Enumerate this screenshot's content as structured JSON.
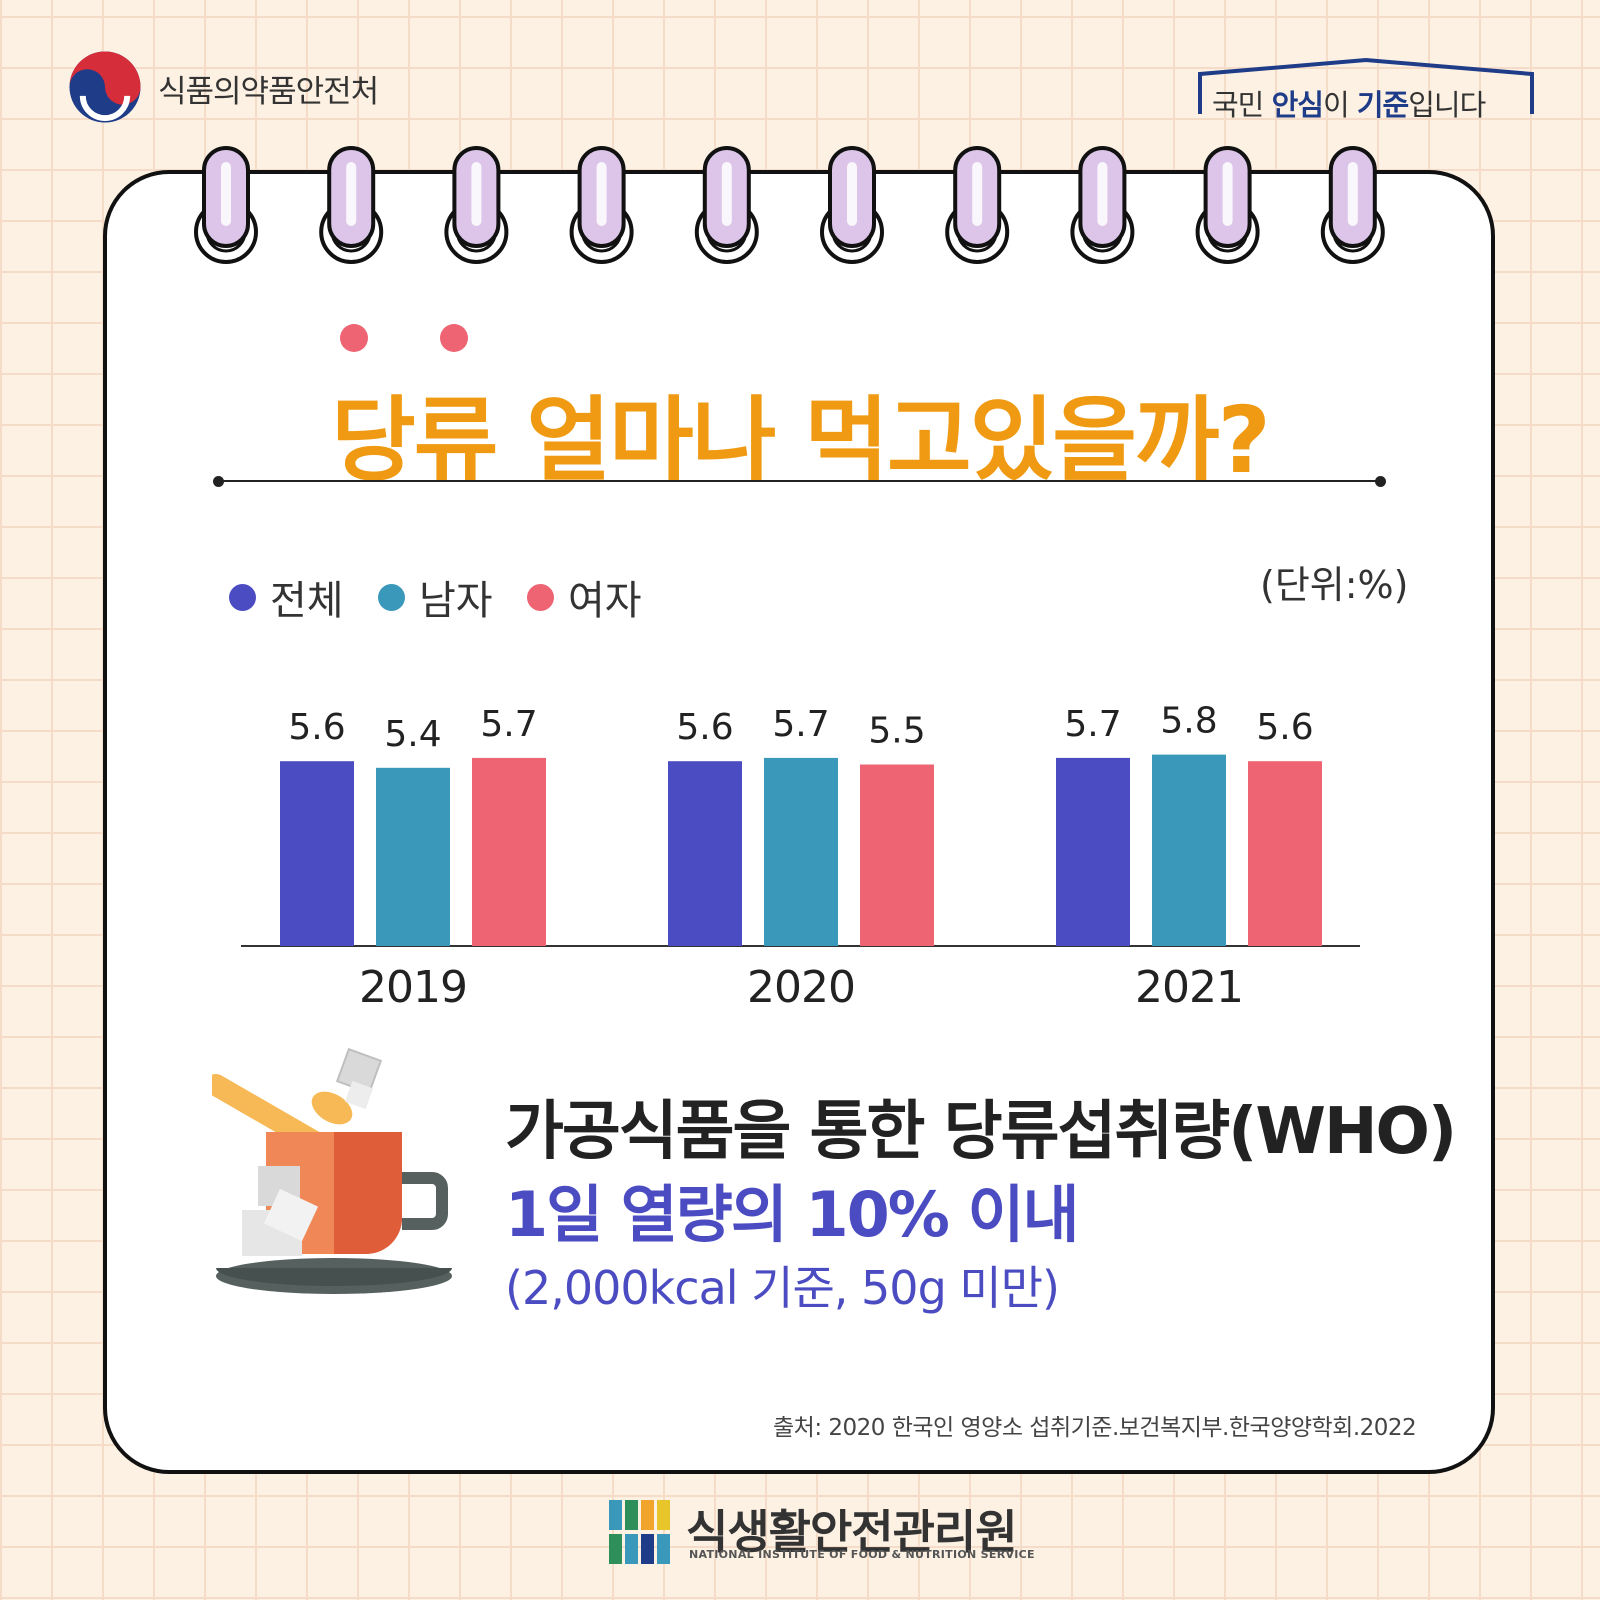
{
  "header": {
    "org_name": "식품의약품안전처",
    "slogan": {
      "pre": "국민 ",
      "bold1": "안심",
      "mid": "이 ",
      "bold2": "기준",
      "post": "입니다"
    }
  },
  "legend": [
    {
      "label": "전체",
      "color": "#4b4cc2"
    },
    {
      "label": "남자",
      "color": "#3a98bb"
    },
    {
      "label": "여자",
      "color": "#ee6473"
    }
  ],
  "unit": "(단위:%)",
  "chart_data": {
    "type": "bar",
    "title": "당류 얼마나 먹고있을까?",
    "categories": [
      "2019",
      "2020",
      "2021"
    ],
    "series": [
      {
        "name": "전체",
        "values": [
          5.6,
          5.6,
          5.7
        ],
        "color": "#4b4cc2"
      },
      {
        "name": "남자",
        "values": [
          5.4,
          5.7,
          5.8
        ],
        "color": "#3a98bb"
      },
      {
        "name": "여자",
        "values": [
          5.7,
          5.5,
          5.6
        ],
        "color": "#ee6473"
      }
    ],
    "ylabel": "",
    "xlabel": "",
    "data_labels": true,
    "legend_position": "top-left"
  },
  "message": {
    "line1": "가공식품을 통한 당류섭취량(WHO)",
    "line2": "1일 열량의 10% 이내",
    "line3": "(2,000kcal 기준, 50g 미만)"
  },
  "source": "출처: 2020 한국인 영양소 섭취기준.보건복지부.한국양양학회.2022",
  "footer": {
    "org_name": "식생활안전관리원",
    "org_subtitle": "NATIONAL INSTITUTE OF FOOD & NUTRITION SERVICE"
  }
}
